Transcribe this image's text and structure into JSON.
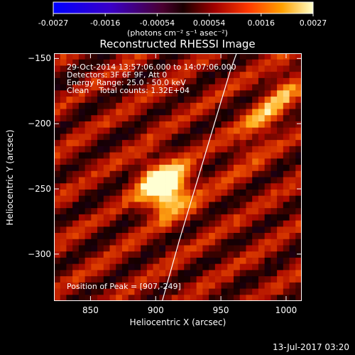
{
  "colorbar": {
    "tick_labels": [
      "-0.0027",
      "-0.0016",
      "-0.00054",
      "0.00054",
      "0.0016",
      "0.0027"
    ],
    "units": "(photons cm⁻² s⁻¹ asec⁻²)"
  },
  "info": {
    "time": "29-Oct-2014 13:57:06.000 to 14:07:06.000",
    "detectors": "Detectors: 3F 6F 9F, Att 0",
    "energy": "Energy Range: 25.0 - 50.0 keV",
    "clean": "Clean    Total counts: 1.32E+04",
    "peak": "Position of Peak = [907,-249]"
  },
  "footer": {
    "datestamp": "13-Jul-2017 03:20"
  },
  "chart_data": {
    "type": "heatmap",
    "title": "Reconstructed RHESSI Image",
    "xlabel": "Heliocentric X (arcsec)",
    "ylabel": "Heliocentric Y (arcsec)",
    "xlim": [
      822,
      1012
    ],
    "ylim": [
      -336,
      -146
    ],
    "xticks": [
      850,
      900,
      950,
      1000
    ],
    "yticks": [
      -150,
      -200,
      -250,
      -300
    ],
    "colormap_range": [
      -0.0027,
      0.0027
    ],
    "peak": {
      "x": 907,
      "y": -249
    },
    "limb_curve": [
      [
        905,
        -336
      ],
      [
        918,
        -290
      ],
      [
        930,
        -250
      ],
      [
        942,
        -210
      ],
      [
        957,
        -160
      ],
      [
        962,
        -146
      ]
    ]
  }
}
